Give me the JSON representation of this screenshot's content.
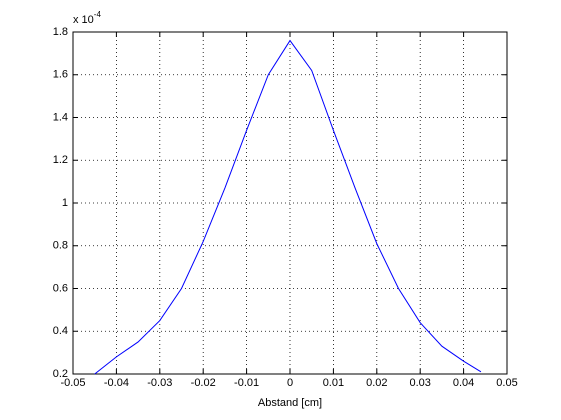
{
  "chart_data": {
    "type": "line",
    "x_label": "Abstand [cm]",
    "y_multiplier": {
      "base": "x 10",
      "exponent": "-4"
    },
    "x": [
      -0.045,
      -0.04,
      -0.035,
      -0.03,
      -0.025,
      -0.02,
      -0.015,
      -0.01,
      -0.005,
      0,
      0.005,
      0.01,
      0.015,
      0.02,
      0.025,
      0.03,
      0.035,
      0.04,
      0.044
    ],
    "series": [
      {
        "color": "#0000ff",
        "values": [
          0.2,
          0.28,
          0.35,
          0.45,
          0.6,
          0.82,
          1.07,
          1.34,
          1.6,
          1.76,
          1.62,
          1.34,
          1.07,
          0.81,
          0.6,
          0.44,
          0.33,
          0.26,
          0.21
        ]
      }
    ],
    "xlim": [
      -0.05,
      0.05
    ],
    "xticks": [
      -0.05,
      -0.04,
      -0.03,
      -0.02,
      -0.01,
      0,
      0.01,
      0.02,
      0.03,
      0.04,
      0.05
    ],
    "ylim": [
      0.2,
      1.8
    ],
    "yticks": [
      0.2,
      0.4,
      0.6,
      0.8,
      1,
      1.2,
      1.4,
      1.6,
      1.8
    ],
    "grid": true
  }
}
